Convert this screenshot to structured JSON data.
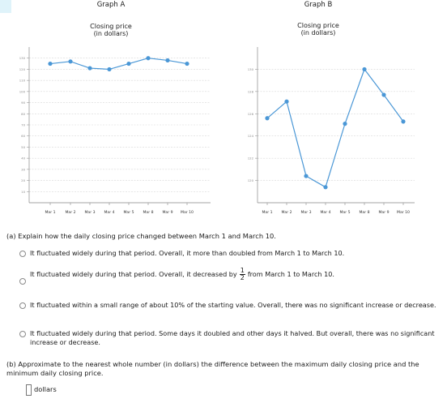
{
  "charts": [
    {
      "graph_label": "Graph A",
      "ylabel_line1": "Closing price",
      "ylabel_line2": "(in dollars)"
    },
    {
      "graph_label": "Graph B",
      "ylabel_line1": "Closing price",
      "ylabel_line2": "(in dollars)"
    }
  ],
  "chart_data": [
    {
      "type": "line",
      "title": "Graph A",
      "ylabel": "Closing price (in dollars)",
      "categories": [
        "Mar 1",
        "Mar 2",
        "Mar 3",
        "Mar 4",
        "Mar 5",
        "Mar 8",
        "Mar 9",
        "Mar 10"
      ],
      "values": [
        125,
        127,
        121,
        120,
        125,
        130,
        128,
        125
      ],
      "ylim": [
        0,
        140
      ],
      "yticks": [
        10,
        20,
        30,
        40,
        50,
        60,
        70,
        80,
        90,
        100,
        110,
        120,
        130
      ],
      "ytick_labels": [
        "10",
        "20",
        "30",
        "40",
        "50",
        "60",
        "70",
        "80",
        "90",
        "100",
        "110",
        "120",
        "130"
      ],
      "grid": true,
      "color": "#4a97d6"
    },
    {
      "type": "line",
      "title": "Graph B",
      "ylabel": "Closing price (in dollars)",
      "categories": [
        "Mar 1",
        "Mar 2",
        "Mar 3",
        "Mar 4",
        "Mar 5",
        "Mar 8",
        "Mar 9",
        "Mar 10"
      ],
      "values": [
        125.6,
        127.1,
        120.4,
        119.4,
        125.1,
        130,
        127.7,
        125.3
      ],
      "ylim": [
        118,
        132
      ],
      "yticks": [
        120,
        122,
        124,
        126,
        128,
        130
      ],
      "ytick_labels": [
        "120",
        "122",
        "124",
        "126",
        "128",
        "130"
      ],
      "grid": true,
      "color": "#4a97d6"
    }
  ],
  "question_a": {
    "prompt": "(a) Explain how the daily closing price changed between March 1 and March 10.",
    "options": [
      "It fluctuated widely during that period. Overall, it more than doubled from March 1 to March 10.",
      "It fluctuated widely during that period. Overall, it decreased by",
      "It fluctuated within a small range of about 10% of the starting value. Overall, there was no significant increase or decrease.",
      "It fluctuated widely during that period. Some days it doubled and other days it halved. But overall, there was no significant increase or decrease."
    ],
    "option2_frac_num": "1",
    "option2_frac_den": "2",
    "option2_tail": "from March 1 to March 10."
  },
  "question_b": {
    "prompt": "(b) Approximate to the nearest whole number (in dollars) the difference between the maximum daily closing price and the minimum daily closing price.",
    "answer_value": "",
    "unit": "dollars"
  }
}
